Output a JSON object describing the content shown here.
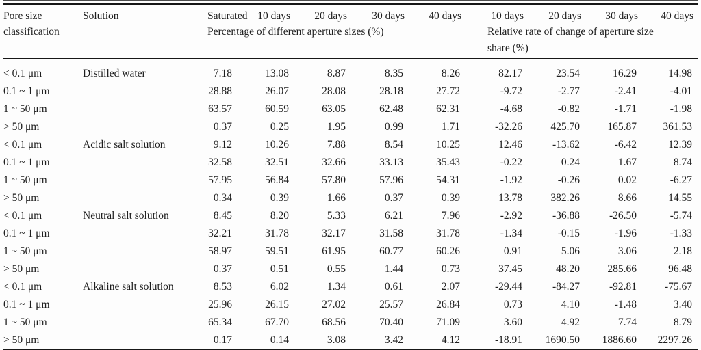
{
  "table": {
    "header": {
      "pore_col": "Pore size\nclassification",
      "solution_col": "Solution",
      "time_cols": [
        "Saturated",
        "10 days",
        "20 days",
        "30 days",
        "40 days",
        "10 days",
        "20 days",
        "30 days",
        "40 days"
      ],
      "group_percentage": "Percentage of different aperture sizes (%)",
      "group_relative": "Relative rate of change of aperture size\nshare (%)"
    },
    "rows": [
      {
        "pore": "< 0.1 μm",
        "solution": "Distilled water",
        "values": [
          "7.18",
          "13.08",
          "8.87",
          "8.35",
          "8.26",
          "82.17",
          "23.54",
          "16.29",
          "14.98"
        ]
      },
      {
        "pore": "0.1 ~ 1 μm",
        "solution": "",
        "values": [
          "28.88",
          "26.07",
          "28.08",
          "28.18",
          "27.72",
          "-9.72",
          "-2.77",
          "-2.41",
          "-4.01"
        ]
      },
      {
        "pore": "1 ~ 50 μm",
        "solution": "",
        "values": [
          "63.57",
          "60.59",
          "63.05",
          "62.48",
          "62.31",
          "-4.68",
          "-0.82",
          "-1.71",
          "-1.98"
        ]
      },
      {
        "pore": "> 50 μm",
        "solution": "",
        "values": [
          "0.37",
          "0.25",
          "1.95",
          "0.99",
          "1.71",
          "-32.26",
          "425.70",
          "165.87",
          "361.53"
        ]
      },
      {
        "pore": "< 0.1 μm",
        "solution": "Acidic salt solution",
        "values": [
          "9.12",
          "10.26",
          "7.88",
          "8.54",
          "10.25",
          "12.46",
          "-13.62",
          "-6.42",
          "12.39"
        ]
      },
      {
        "pore": "0.1 ~ 1 μm",
        "solution": "",
        "values": [
          "32.58",
          "32.51",
          "32.66",
          "33.13",
          "35.43",
          "-0.22",
          "0.24",
          "1.67",
          "8.74"
        ]
      },
      {
        "pore": "1 ~ 50 μm",
        "solution": "",
        "values": [
          "57.95",
          "56.84",
          "57.80",
          "57.96",
          "54.31",
          "-1.92",
          "-0.26",
          "0.02",
          "-6.27"
        ]
      },
      {
        "pore": "> 50 μm",
        "solution": "",
        "values": [
          "0.34",
          "0.39",
          "1.66",
          "0.37",
          "0.39",
          "13.78",
          "382.26",
          "8.66",
          "14.55"
        ]
      },
      {
        "pore": "< 0.1 μm",
        "solution": "Neutral salt solution",
        "values": [
          "8.45",
          "8.20",
          "5.33",
          "6.21",
          "7.96",
          "-2.92",
          "-36.88",
          "-26.50",
          "-5.74"
        ]
      },
      {
        "pore": "0.1 ~ 1 μm",
        "solution": "",
        "values": [
          "32.21",
          "31.78",
          "32.17",
          "31.58",
          "31.78",
          "-1.34",
          "-0.15",
          "-1.96",
          "-1.33"
        ]
      },
      {
        "pore": "1 ~ 50 μm",
        "solution": "",
        "values": [
          "58.97",
          "59.51",
          "61.95",
          "60.77",
          "60.26",
          "0.91",
          "5.06",
          "3.06",
          "2.18"
        ]
      },
      {
        "pore": "> 50 μm",
        "solution": "",
        "values": [
          "0.37",
          "0.51",
          "0.55",
          "1.44",
          "0.73",
          "37.45",
          "48.20",
          "285.66",
          "96.48"
        ]
      },
      {
        "pore": "< 0.1 μm",
        "solution": "Alkaline salt solution",
        "values": [
          "8.53",
          "6.02",
          "1.34",
          "0.61",
          "2.07",
          "-29.44",
          "-84.27",
          "-92.81",
          "-75.67"
        ]
      },
      {
        "pore": "0.1 ~ 1 μm",
        "solution": "",
        "values": [
          "25.96",
          "26.15",
          "27.02",
          "25.57",
          "26.84",
          "0.73",
          "4.10",
          "-1.48",
          "3.40"
        ]
      },
      {
        "pore": "1 ~ 50 μm",
        "solution": "",
        "values": [
          "65.34",
          "67.70",
          "68.56",
          "70.40",
          "71.09",
          "3.60",
          "4.92",
          "7.74",
          "8.79"
        ]
      },
      {
        "pore": "> 50 μm",
        "solution": "",
        "values": [
          "0.17",
          "0.14",
          "3.08",
          "3.42",
          "4.12",
          "-18.91",
          "1690.50",
          "1886.60",
          "2297.26"
        ]
      }
    ]
  }
}
